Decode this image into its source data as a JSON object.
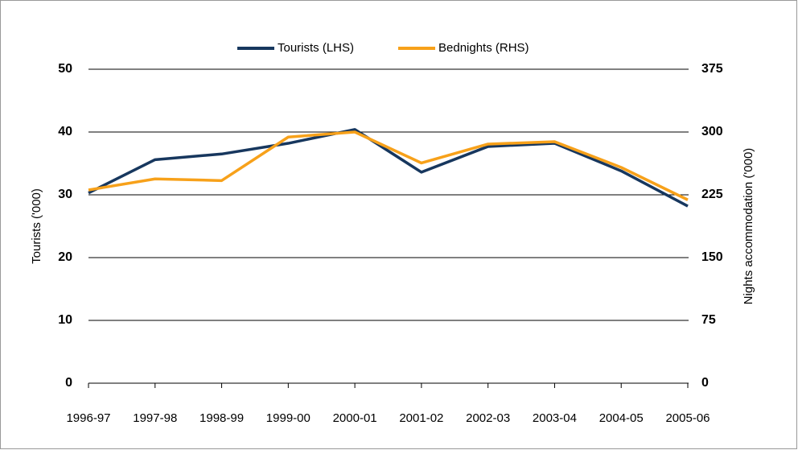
{
  "chart_data": {
    "type": "line",
    "x": [
      "1996-97",
      "1997-98",
      "1998-99",
      "1999-00",
      "2000-01",
      "2001-02",
      "2002-03",
      "2003-04",
      "2004-05",
      "2005-06"
    ],
    "series": [
      {
        "name": "Tourists (LHS)",
        "color": "#17375e",
        "values": [
          30.3,
          35.6,
          36.5,
          38.2,
          40.4,
          33.6,
          37.7,
          38.2,
          33.8,
          28.2
        ]
      },
      {
        "name": "Bednights (RHS)",
        "color": "#f7a11a",
        "axis": "y2",
        "values": [
          230.8,
          244,
          242,
          294,
          300,
          263,
          285.6,
          288.5,
          257.7,
          219
        ]
      }
    ],
    "y_label": "Tourists ('000)",
    "y2_label": "Nights accommodation ('000)",
    "ylim": [
      0,
      50
    ],
    "yticks": [
      0,
      10,
      20,
      30,
      40,
      50
    ],
    "y2lim": [
      0,
      375
    ],
    "y2ticks": [
      0,
      75,
      150,
      225,
      300,
      375
    ],
    "grid": true,
    "legend": "top"
  }
}
